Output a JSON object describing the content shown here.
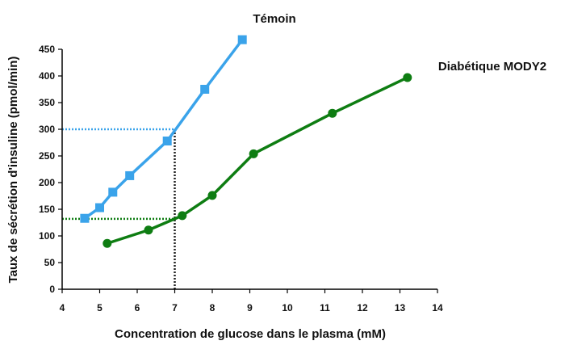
{
  "chart_data": {
    "type": "line",
    "xlabel": "Concentration de glucose dans le plasma (mM)",
    "ylabel": "Taux de sécrétion d'insuline (pmol/min)",
    "xlim": [
      4,
      14
    ],
    "ylim": [
      0,
      450
    ],
    "x_ticks": [
      4,
      5,
      6,
      7,
      8,
      9,
      10,
      11,
      12,
      13,
      14
    ],
    "y_ticks": [
      0,
      50,
      100,
      150,
      200,
      250,
      300,
      350,
      400,
      450
    ],
    "grid": false,
    "series": [
      {
        "name": "Témoin",
        "color": "#3aa3ea",
        "marker": "square",
        "x": [
          4.6,
          5.0,
          5.35,
          5.8,
          6.8,
          7.8,
          8.8
        ],
        "y": [
          133,
          153,
          182,
          213,
          278,
          375,
          468
        ]
      },
      {
        "name": "Diabétique MODY2",
        "color": "#0e7d12",
        "marker": "circle",
        "x": [
          5.2,
          6.3,
          7.2,
          8.0,
          9.1,
          11.2,
          13.2
        ],
        "y": [
          86,
          111,
          138,
          176,
          254,
          330,
          397
        ]
      }
    ],
    "reference_lines": [
      {
        "color": "#3aa3ea",
        "y": 300,
        "x_end": 7.0
      },
      {
        "color": "#0e7d12",
        "y": 132,
        "x_end": 7.0
      },
      {
        "color": "#222222",
        "x": 7.0,
        "y_end": 300
      }
    ]
  }
}
